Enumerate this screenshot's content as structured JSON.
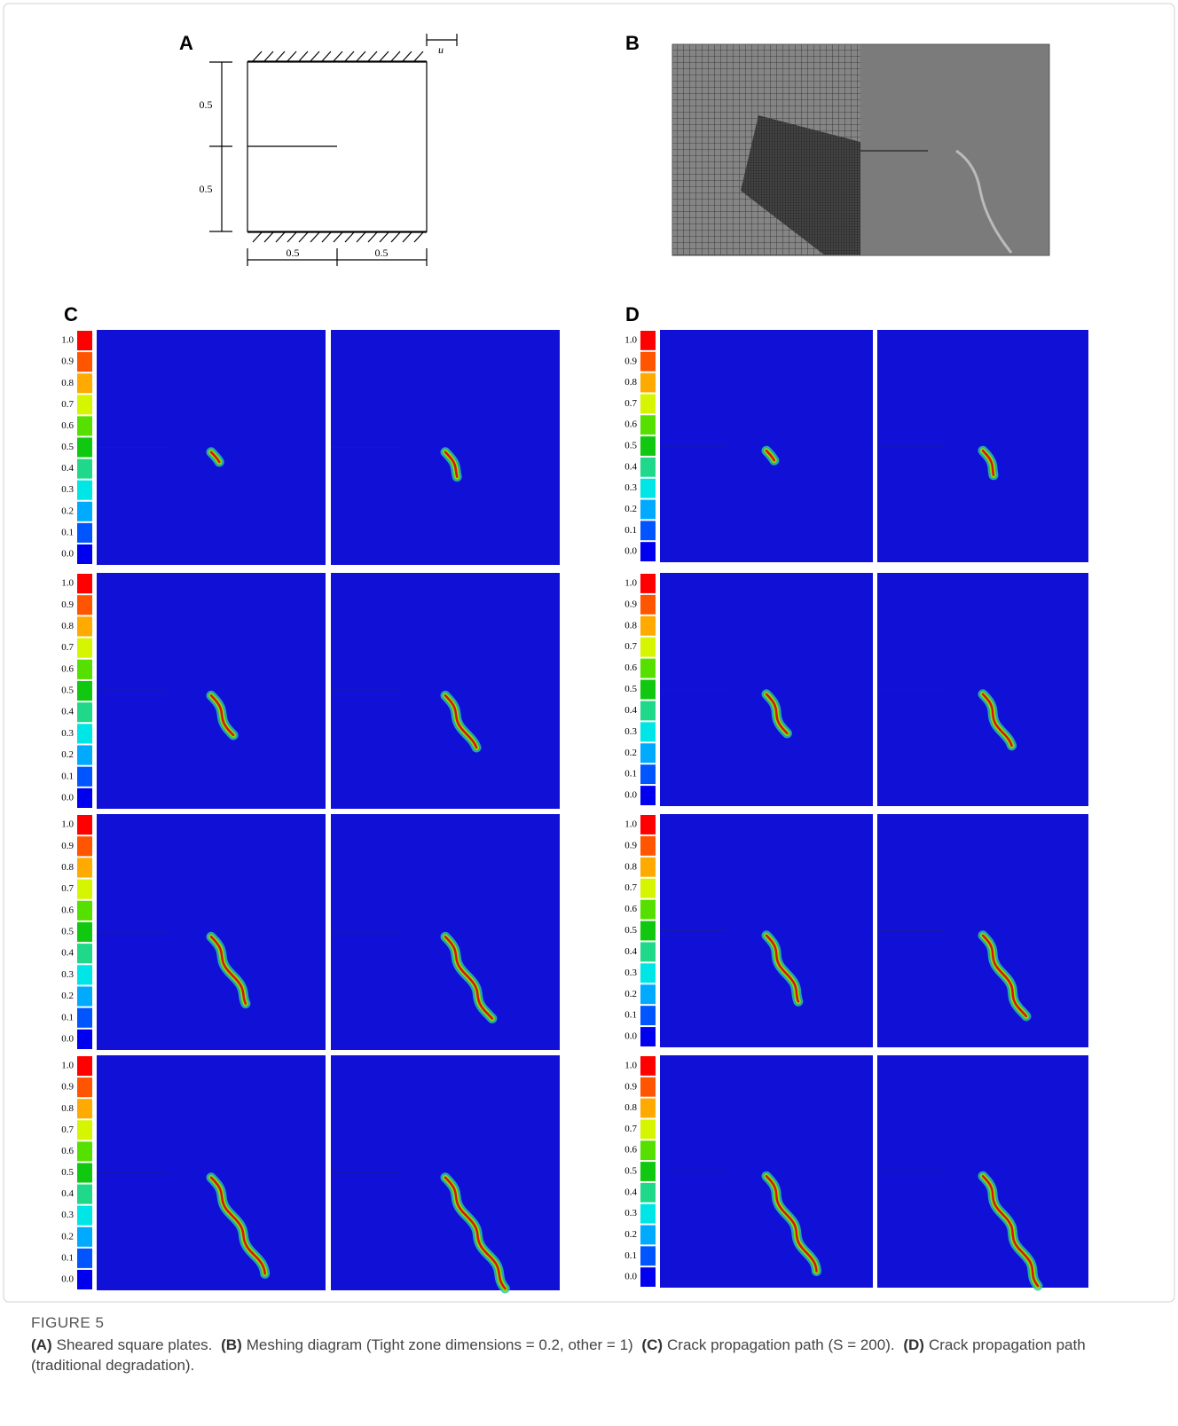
{
  "figure": {
    "panels": {
      "a": {
        "label": "A",
        "u": "u",
        "dim_left_upper": "0.5",
        "dim_left_lower": "0.5",
        "dim_bottom_left": "0.5",
        "dim_bottom_right": "0.5"
      },
      "b": {
        "label": "B"
      },
      "c": {
        "label": "C"
      },
      "d": {
        "label": "D"
      }
    },
    "colorbar_ticks": [
      "1.0",
      "0.9",
      "0.8",
      "0.7",
      "0.6",
      "0.5",
      "0.4",
      "0.3",
      "0.2",
      "0.1",
      "0.0"
    ],
    "caption": {
      "title": "FIGURE 5",
      "segments": [
        {
          "label": "(A)",
          "text": "Sheared square plates."
        },
        {
          "label": "(B)",
          "text": "Meshing diagram (Tight zone dimensions = 0.2, other = 1)"
        },
        {
          "label": "(C)",
          "text": "Crack propagation path (S = 200)."
        },
        {
          "label": "(D)",
          "text": "Crack propagation path (traditional degradation)."
        }
      ]
    }
  }
}
